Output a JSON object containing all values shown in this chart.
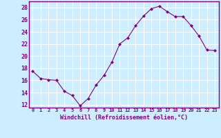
{
  "x": [
    0,
    1,
    2,
    3,
    4,
    5,
    6,
    7,
    8,
    9,
    10,
    11,
    12,
    13,
    14,
    15,
    16,
    17,
    18,
    19,
    20,
    21,
    22,
    23
  ],
  "y": [
    17.5,
    16.3,
    16.1,
    16.0,
    14.2,
    13.5,
    11.8,
    13.0,
    15.2,
    16.8,
    19.0,
    22.0,
    23.0,
    25.0,
    26.6,
    27.8,
    28.2,
    27.3,
    26.5,
    26.5,
    25.0,
    23.3,
    21.0,
    20.9
  ],
  "line_color": "#800080",
  "marker": "D",
  "marker_size": 2.0,
  "bg_color": "#cceeff",
  "grid_color": "#ffffff",
  "xlabel": "Windchill (Refroidissement éolien,°C)",
  "xlabel_color": "#800080",
  "tick_color": "#800080",
  "ylim": [
    11.5,
    29.0
  ],
  "yticks": [
    12,
    14,
    16,
    18,
    20,
    22,
    24,
    26,
    28
  ],
  "xlim": [
    -0.5,
    23.5
  ],
  "xticks": [
    0,
    1,
    2,
    3,
    4,
    5,
    6,
    7,
    8,
    9,
    10,
    11,
    12,
    13,
    14,
    15,
    16,
    17,
    18,
    19,
    20,
    21,
    22,
    23
  ],
  "xtick_labels": [
    "0",
    "1",
    "2",
    "3",
    "4",
    "5",
    "6",
    "7",
    "8",
    "9",
    "10",
    "11",
    "12",
    "13",
    "14",
    "15",
    "16",
    "17",
    "18",
    "19",
    "20",
    "21",
    "22",
    "23"
  ],
  "spine_color": "#800080",
  "axis_line_color": "#800080"
}
